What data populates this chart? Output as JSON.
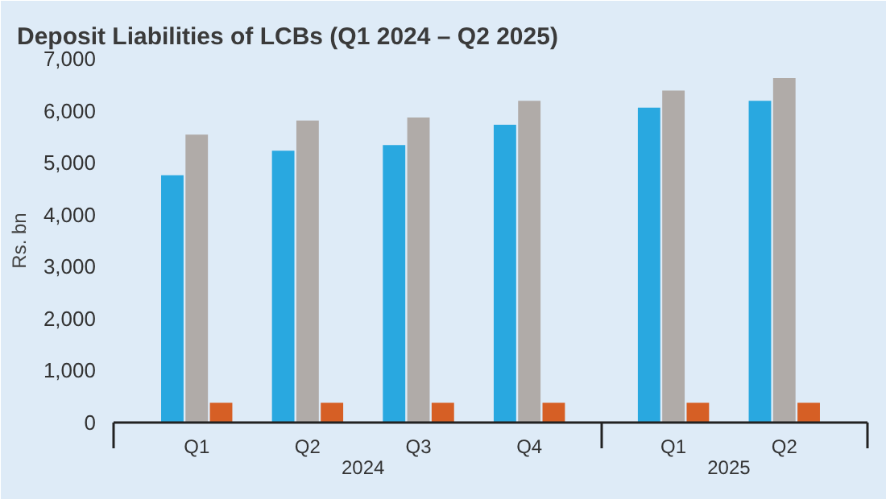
{
  "chart_data": {
    "type": "bar",
    "title": "Deposit Liabilities of LCBs (Q1 2024 – Q2 2025)",
    "ylabel": "Rs. bn",
    "categories": [
      "Q1",
      "Q2",
      "Q3",
      "Q4",
      "Q1",
      "Q2"
    ],
    "annotations": [
      "2024",
      "2025"
    ],
    "series": [
      {
        "color": "#29a8e0",
        "values": [
          4760,
          5230,
          5340,
          5730,
          6060,
          6190
        ]
      },
      {
        "color": "#b0aba8",
        "values": [
          5540,
          5810,
          5870,
          6190,
          6390,
          6630
        ]
      },
      {
        "color": "#d65f25",
        "values": [
          380,
          380,
          380,
          380,
          380,
          380
        ]
      }
    ],
    "ylim": [
      0,
      7000
    ],
    "yticks": [
      {
        "value": 0,
        "label": "0"
      },
      {
        "value": 1000,
        "label": "1,000"
      },
      {
        "value": 2000,
        "label": "2,000"
      },
      {
        "value": 3000,
        "label": "3,000"
      },
      {
        "value": 4000,
        "label": "4,000"
      },
      {
        "value": 5000,
        "label": "5,000"
      },
      {
        "value": 6000,
        "label": "6,000"
      },
      {
        "value": 7000,
        "label": "7,000"
      }
    ],
    "grid": false
  }
}
